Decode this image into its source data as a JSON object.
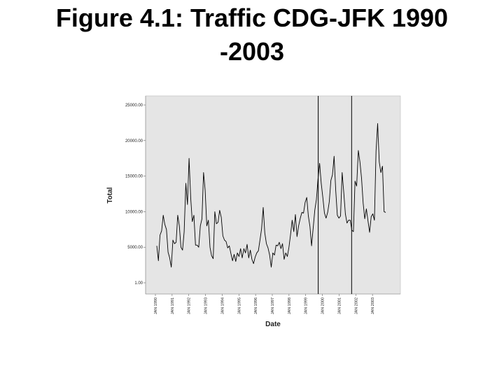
{
  "slide": {
    "title": "Figure 4.1: Traffic CDG-JFK 1990\n-2003"
  },
  "chart_data": {
    "type": "line",
    "title": "Figure 4.1: Traffic CDG-JFK 1990 -2003",
    "xlabel": "Date",
    "ylabel": "Total",
    "ylim": [
      1,
      25000
    ],
    "yticks": [
      "1.00",
      "5000.00",
      "10000.00",
      "15000.00",
      "20000.00",
      "25000.00"
    ],
    "ytick_values": [
      1,
      5000,
      10000,
      15000,
      20000,
      25000
    ],
    "xticks": [
      "JAN 1990",
      "JAN 1991",
      "JAN 1992",
      "JAN 1993",
      "JAN 1994",
      "JAN 1995",
      "JAN 1996",
      "JAN 1997",
      "JAN 1998",
      "JAN 1999",
      "JAN 2000",
      "JAN 2001",
      "JAN 2002",
      "JAN 2003"
    ],
    "x_start_year": 1990,
    "x_end_year": 2004,
    "vertical_markers": [
      "JAN 1999 / SEP 1999",
      "SEP 2001"
    ],
    "vertical_marker_values": [
      1999.75,
      2001.75
    ],
    "background": "#e5e5e5",
    "line_color": "#000000",
    "grid": false,
    "series": [
      {
        "values": [
          5200,
          3100,
          6700,
          7300,
          9500,
          8200,
          7500,
          4300,
          3500,
          2200,
          6000,
          5500,
          5700,
          9500,
          8000,
          5000,
          4600,
          7200,
          14000,
          11000,
          17500,
          12000,
          8600,
          9500,
          5300,
          5300,
          5000,
          8000,
          9000,
          15500,
          13000,
          8000,
          8800,
          5000,
          3800,
          3400,
          10000,
          8300,
          8500,
          10200,
          9200,
          6600,
          6000,
          5800,
          4900,
          5200,
          4100,
          3100,
          4000,
          3000,
          4200,
          3700,
          4800,
          3500,
          4800,
          4200,
          5400,
          3500,
          4600,
          3300,
          2700,
          3600,
          4200,
          4500,
          6000,
          7600,
          10600,
          7000,
          5500,
          4900,
          3900,
          2200,
          4200,
          3900,
          5300,
          5200,
          5700,
          4800,
          5500,
          3300,
          4200,
          3700,
          5000,
          6800,
          8800,
          7200,
          9600,
          6500,
          8000,
          9100,
          9900,
          9800,
          11300,
          12000,
          9400,
          7900,
          5200,
          7700,
          10200,
          11700,
          14600,
          16800,
          14000,
          12000,
          9800,
          9100,
          9900,
          11400,
          14400,
          15200,
          17800,
          13000,
          9500,
          9100,
          9400,
          15500,
          12700,
          9700,
          8400,
          8800,
          8800,
          7400,
          7200,
          14300,
          13600,
          18600,
          17000,
          14700,
          11200,
          9000,
          10400,
          8700,
          7100,
          9300,
          9700,
          8800,
          18500,
          22400,
          17000,
          15500,
          16400,
          10000,
          9900
        ]
      }
    ]
  }
}
